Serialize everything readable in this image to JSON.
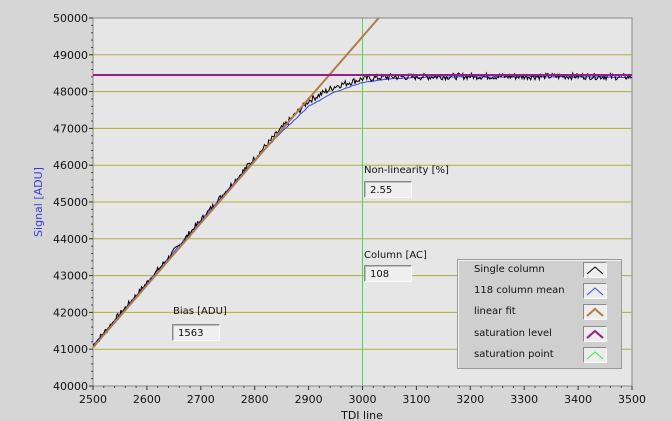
{
  "chart_data": {
    "type": "line",
    "xlabel": "TDI line",
    "ylabel": "Signal [ADU]",
    "xlim": [
      2500,
      3500
    ],
    "ylim": [
      40000,
      50000
    ],
    "x_ticks": [
      "2500",
      "2600",
      "2700",
      "2800",
      "2900",
      "3000",
      "3100",
      "3200",
      "3300",
      "3400",
      "3500"
    ],
    "y_ticks": [
      "40000",
      "41000",
      "42000",
      "43000",
      "44000",
      "45000",
      "46000",
      "47000",
      "48000",
      "49000",
      "50000"
    ],
    "grid": true,
    "legend_position": "bottom-right",
    "series": [
      {
        "name": "Single column",
        "color": "#000000",
        "x": [
          2500,
          2600,
          2700,
          2800,
          2850,
          2900,
          2950,
          3000,
          3050,
          3100,
          3200,
          3300,
          3400,
          3500
        ],
        "y": [
          41100,
          42800,
          44500,
          46200,
          47000,
          47750,
          48150,
          48350,
          48400,
          48400,
          48420,
          48410,
          48420,
          48400
        ]
      },
      {
        "name": "118 column mean",
        "color": "#3344ff",
        "x": [
          2500,
          2600,
          2700,
          2800,
          2850,
          2900,
          2950,
          3000,
          3050,
          3100,
          3200,
          3300,
          3400,
          3500
        ],
        "y": [
          41100,
          42800,
          44500,
          46150,
          46900,
          47600,
          48000,
          48250,
          48350,
          48390,
          48400,
          48400,
          48400,
          48390
        ]
      },
      {
        "name": "linear fit",
        "color": "#b57a4a",
        "x": [
          2500,
          3030
        ],
        "y": [
          41050,
          50000
        ]
      },
      {
        "name": "saturation level",
        "color": "#9b1a8c",
        "x": [
          2500,
          3500
        ],
        "y": [
          48450,
          48450
        ]
      },
      {
        "name": "saturation point",
        "color": "#44e04a",
        "x": [
          3000,
          3000
        ],
        "y": [
          40000,
          50000
        ]
      }
    ],
    "annotations": [
      {
        "label": "Non-linearity [%]",
        "value": "2.55"
      },
      {
        "label": "Column [AC]",
        "value": "108"
      },
      {
        "label": "Bias [ADU]",
        "value": "1563"
      }
    ]
  },
  "colors": {
    "plot_background": "#e6e6e6",
    "grid_color": "#b3ad3a",
    "ylabel_color": "#3b3bd6"
  }
}
